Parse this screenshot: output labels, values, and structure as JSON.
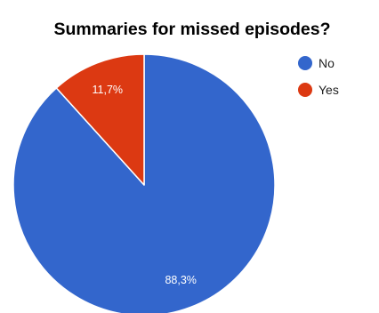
{
  "chart_data": {
    "type": "pie",
    "title": "Summaries for missed episodes?",
    "categories": [
      "No",
      "Yes"
    ],
    "values": [
      88.3,
      11.7
    ],
    "data_labels": [
      "88,3%",
      "11,7%"
    ],
    "colors": [
      "#3366cc",
      "#dc3912"
    ],
    "legend": {
      "position": "right",
      "entries": [
        "No",
        "Yes"
      ]
    },
    "start_angle_deg": 0,
    "direction": "clockwise"
  }
}
